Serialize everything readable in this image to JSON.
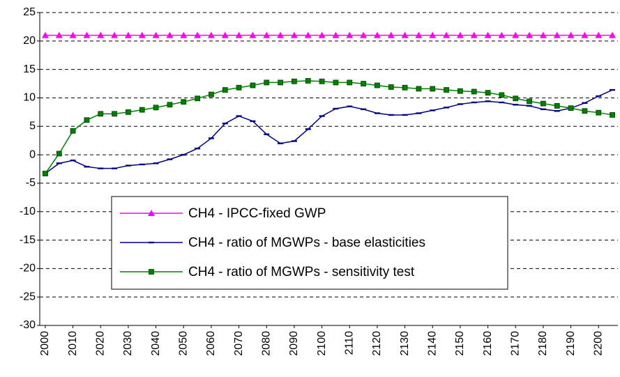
{
  "chart_data": {
    "type": "line",
    "x": [
      2000,
      2005,
      2010,
      2015,
      2020,
      2025,
      2030,
      2035,
      2040,
      2045,
      2050,
      2055,
      2060,
      2065,
      2070,
      2075,
      2080,
      2085,
      2090,
      2095,
      2100,
      2105,
      2110,
      2115,
      2120,
      2125,
      2130,
      2135,
      2140,
      2145,
      2150,
      2155,
      2160,
      2165,
      2170,
      2175,
      2180,
      2185,
      2190,
      2195,
      2200,
      2205
    ],
    "xlim": [
      1998,
      2207
    ],
    "xticks": [
      2000,
      2010,
      2020,
      2030,
      2040,
      2050,
      2060,
      2070,
      2080,
      2090,
      2100,
      2110,
      2120,
      2130,
      2140,
      2150,
      2160,
      2170,
      2180,
      2190,
      2200
    ],
    "ylim": [
      -30,
      25
    ],
    "yticks": [
      -30,
      -25,
      -20,
      -15,
      -10,
      -5,
      0,
      5,
      10,
      15,
      20,
      25
    ],
    "grid": true,
    "legend": "lower-left",
    "series": [
      {
        "name": "CH4 - IPCC-fixed GWP",
        "color": "#ff00ff",
        "marker": "triangle",
        "values": [
          21,
          21,
          21,
          21,
          21,
          21,
          21,
          21,
          21,
          21,
          21,
          21,
          21,
          21,
          21,
          21,
          21,
          21,
          21,
          21,
          21,
          21,
          21,
          21,
          21,
          21,
          21,
          21,
          21,
          21,
          21,
          21,
          21,
          21,
          21,
          21,
          21,
          21,
          21,
          21,
          21,
          21
        ]
      },
      {
        "name": "CH4 - ratio of MGWPs - base elasticities",
        "color": "#000080",
        "marker": "dash",
        "values": [
          -3.3,
          -1.5,
          -1.0,
          -2.1,
          -2.4,
          -2.4,
          -1.9,
          -1.7,
          -1.5,
          -0.8,
          0.0,
          1.1,
          2.9,
          5.5,
          6.8,
          5.9,
          3.6,
          2.0,
          2.4,
          4.5,
          6.8,
          8.1,
          8.5,
          8.0,
          7.3,
          7.0,
          7.0,
          7.3,
          7.8,
          8.3,
          8.9,
          9.2,
          9.4,
          9.2,
          8.8,
          8.6,
          8.0,
          7.7,
          8.2,
          9.1,
          10.3,
          11.4
        ]
      },
      {
        "name": "CH4 - ratio of MGWPs - sensitivity test",
        "color": "#008000",
        "marker": "square",
        "values": [
          -3.3,
          0.2,
          4.2,
          6.1,
          7.2,
          7.2,
          7.5,
          7.9,
          8.3,
          8.8,
          9.3,
          9.9,
          10.6,
          11.4,
          11.8,
          12.2,
          12.7,
          12.7,
          12.9,
          13.0,
          12.9,
          12.7,
          12.7,
          12.5,
          12.2,
          11.9,
          11.8,
          11.6,
          11.6,
          11.4,
          11.2,
          11.1,
          10.9,
          10.5,
          9.9,
          9.4,
          9.0,
          8.6,
          8.2,
          7.7,
          7.4,
          7.0
        ]
      }
    ]
  }
}
